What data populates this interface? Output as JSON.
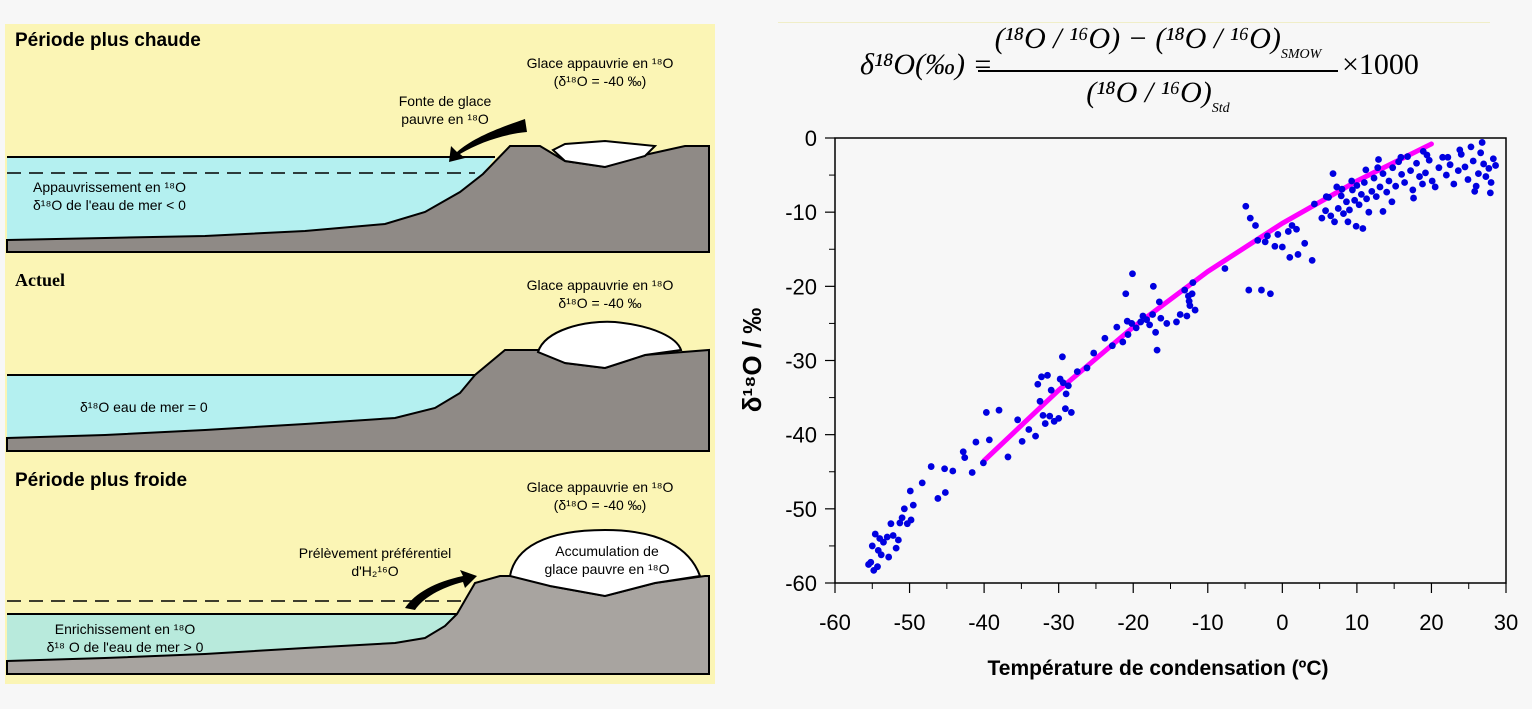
{
  "left_diagram": {
    "panels": [
      {
        "title": "Période plus chaude",
        "ice_label_line1": "Glace appauvrie en ¹⁸O",
        "ice_label_line2": "(δ¹⁸O = -40 ‰)",
        "arrow_label_line1": "Fonte de glace",
        "arrow_label_line2": "pauvre en ¹⁸O",
        "sea_label_line1": "Appauvrissement en ¹⁸O",
        "sea_label_line2": "δ¹⁸O de l'eau de mer < 0"
      },
      {
        "title": "Actuel",
        "ice_label_line1": "Glace appauvrie en ¹⁸O",
        "ice_label_line2": "δ¹⁸O = -40 ‰",
        "sea_label_line1": "δ¹⁸O eau de mer = 0"
      },
      {
        "title": "Période plus froide",
        "ice_label_line1": "Glace appauvrie en ¹⁸O",
        "ice_label_line2": "(δ¹⁸O = -40 ‰)",
        "arrow_label_line1": "Prélèvement préférentiel",
        "arrow_label_line2": "d'H₂¹⁶O",
        "ice_inner_line1": "Accumulation de",
        "ice_inner_line2": "glace pauvre en ¹⁸O",
        "sea_label_line1": "Enrichissement en ¹⁸O",
        "sea_label_line2": "δ¹⁸ O de l'eau de mer > 0"
      }
    ],
    "colors": {
      "background": "#fbf5b5",
      "sea_warm": "#b4f0f0",
      "sea_now": "#b4f0f0",
      "sea_cold": "#b8eadc",
      "rock": "#8f8a86",
      "rock_cold": "#a8a4a0",
      "ice": "#ffffff"
    }
  },
  "formula": {
    "lhs": "δ¹⁸O(‰) =",
    "numerator": "(¹⁸O / ¹⁶O) − (¹⁸O / ¹⁶O)",
    "numerator_sub": "SMOW",
    "denominator": "(¹⁸O / ¹⁶O)",
    "denominator_sub": "Std",
    "rhs": "×1000"
  },
  "chart_data": {
    "type": "scatter",
    "title": "",
    "xlabel": "Température de condensation (ºC)",
    "ylabel": "δ¹⁸O / ‰",
    "xlim": [
      -60,
      30
    ],
    "ylim": [
      -60,
      0
    ],
    "xticks": [
      -60,
      -50,
      -40,
      -30,
      -20,
      -10,
      0,
      10,
      20,
      30
    ],
    "yticks": [
      0,
      -10,
      -20,
      -30,
      -40,
      -50,
      -60
    ],
    "grid": false,
    "legend": "none",
    "point_color": "#0000e0",
    "fit_color": "#ff00ff",
    "fit_line": {
      "x": [
        -40,
        -30,
        -20,
        -10,
        0,
        10,
        20
      ],
      "y": [
        -43.5,
        -34.0,
        -25.5,
        -18.0,
        -11.5,
        -5.8,
        -0.8
      ]
    },
    "series": [
      {
        "name": "observations",
        "points": [
          [
            -55.2,
            -57.2
          ],
          [
            -55.5,
            -57.5
          ],
          [
            -54.8,
            -58.3
          ],
          [
            -54.3,
            -57.8
          ],
          [
            -55.0,
            -55.0
          ],
          [
            -54.6,
            -53.4
          ],
          [
            -54.2,
            -55.6
          ],
          [
            -53.8,
            -56.2
          ],
          [
            -54.0,
            -54.0
          ],
          [
            -53.5,
            -54.5
          ],
          [
            -53.0,
            -53.8
          ],
          [
            -52.8,
            -56.5
          ],
          [
            -52.5,
            -52.0
          ],
          [
            -52.2,
            -53.6
          ],
          [
            -51.8,
            -55.3
          ],
          [
            -51.5,
            -54.2
          ],
          [
            -51.3,
            -51.9
          ],
          [
            -51.0,
            -51.2
          ],
          [
            -50.7,
            -50.0
          ],
          [
            -50.3,
            -52.0
          ],
          [
            -49.8,
            -51.5
          ],
          [
            -49.5,
            -49.5
          ],
          [
            -49.9,
            -47.6
          ],
          [
            -48.3,
            -46.5
          ],
          [
            -47.1,
            -44.3
          ],
          [
            -46.2,
            -48.6
          ],
          [
            -45.3,
            -44.6
          ],
          [
            -45.2,
            -47.8
          ],
          [
            -44.2,
            -44.9
          ],
          [
            -42.8,
            -42.3
          ],
          [
            -42.6,
            -43.1
          ],
          [
            -41.6,
            -45.1
          ],
          [
            -41.1,
            -41.0
          ],
          [
            -40.1,
            -43.8
          ],
          [
            -39.3,
            -40.7
          ],
          [
            -39.7,
            -37.0
          ],
          [
            -38.0,
            -36.7
          ],
          [
            -36.8,
            -43.0
          ],
          [
            -35.5,
            -38.0
          ],
          [
            -34.9,
            -40.9
          ],
          [
            -34.0,
            -39.3
          ],
          [
            -33.1,
            -40.2
          ],
          [
            -32.1,
            -37.4
          ],
          [
            -31.8,
            -38.5
          ],
          [
            -31.2,
            -37.5
          ],
          [
            -30.6,
            -38.2
          ],
          [
            -30.0,
            -37.8
          ],
          [
            -29.1,
            -36.5
          ],
          [
            -28.3,
            -37.0
          ],
          [
            -32.5,
            -35.5
          ],
          [
            -31.0,
            -34.0
          ],
          [
            -32.3,
            -32.2
          ],
          [
            -31.5,
            -32.0
          ],
          [
            -32.8,
            -33.2
          ],
          [
            -29.8,
            -32.5
          ],
          [
            -29.4,
            -33.0
          ],
          [
            -28.7,
            -33.4
          ],
          [
            -29.0,
            -34.5
          ],
          [
            -29.5,
            -29.5
          ],
          [
            -27.5,
            -31.5
          ],
          [
            -26.2,
            -31.0
          ],
          [
            -25.3,
            -29.0
          ],
          [
            -23.8,
            -27.0
          ],
          [
            -22.8,
            -28.0
          ],
          [
            -22.2,
            -25.5
          ],
          [
            -21.4,
            -27.5
          ],
          [
            -20.7,
            -26.5
          ],
          [
            -20.8,
            -24.7
          ],
          [
            -20.2,
            -25.0
          ],
          [
            -19.6,
            -25.6
          ],
          [
            -19.0,
            -24.8
          ],
          [
            -18.7,
            -24.0
          ],
          [
            -18.2,
            -24.5
          ],
          [
            -17.8,
            -25.2
          ],
          [
            -17.4,
            -23.8
          ],
          [
            -17.0,
            -26.2
          ],
          [
            -16.3,
            -24.3
          ],
          [
            -16.8,
            -28.6
          ],
          [
            -15.5,
            -25.0
          ],
          [
            -14.2,
            -24.8
          ],
          [
            -13.7,
            -23.8
          ],
          [
            -12.8,
            -24.0
          ],
          [
            -12.4,
            -22.6
          ],
          [
            -12.5,
            -22.0
          ],
          [
            -12.6,
            -21.3
          ],
          [
            -12.1,
            -21.0
          ],
          [
            -13.1,
            -20.5
          ],
          [
            -12.0,
            -19.5
          ],
          [
            -11.7,
            -23.2
          ],
          [
            -20.1,
            -18.3
          ],
          [
            -21.0,
            -21.0
          ],
          [
            -17.3,
            -20.0
          ],
          [
            -16.5,
            -22.1
          ],
          [
            -7.7,
            -17.6
          ],
          [
            -4.9,
            -9.2
          ],
          [
            -4.3,
            -10.8
          ],
          [
            -3.6,
            -11.8
          ],
          [
            -3.3,
            -13.8
          ],
          [
            -2.3,
            -14.0
          ],
          [
            -2.0,
            -13.2
          ],
          [
            -1.0,
            -14.6
          ],
          [
            -0.6,
            -13.0
          ],
          [
            0.0,
            -14.7
          ],
          [
            0.8,
            -12.6
          ],
          [
            1.3,
            -11.8
          ],
          [
            1.9,
            -12.3
          ],
          [
            1.0,
            -16.1
          ],
          [
            2.1,
            -15.7
          ],
          [
            4.0,
            -16.5
          ],
          [
            -4.5,
            -20.5
          ],
          [
            -2.8,
            -20.5
          ],
          [
            -1.6,
            -21.0
          ],
          [
            3.0,
            -14.2
          ],
          [
            5.3,
            -10.8
          ],
          [
            5.8,
            -9.8
          ],
          [
            6.2,
            -8.0
          ],
          [
            6.5,
            -10.5
          ],
          [
            7.0,
            -11.3
          ],
          [
            7.5,
            -9.5
          ],
          [
            7.9,
            -7.8
          ],
          [
            8.2,
            -10.2
          ],
          [
            8.6,
            -8.6
          ],
          [
            9.0,
            -9.7
          ],
          [
            9.4,
            -7.0
          ],
          [
            9.7,
            -8.4
          ],
          [
            10.0,
            -6.4
          ],
          [
            10.3,
            -9.0
          ],
          [
            10.6,
            -7.6
          ],
          [
            11.0,
            -6.0
          ],
          [
            11.3,
            -8.2
          ],
          [
            11.6,
            -10.0
          ],
          [
            12.0,
            -7.2
          ],
          [
            12.3,
            -5.4
          ],
          [
            12.6,
            -7.9
          ],
          [
            13.1,
            -6.6
          ],
          [
            13.5,
            -4.8
          ],
          [
            14.0,
            -7.3
          ],
          [
            14.3,
            -5.8
          ],
          [
            14.8,
            -4.0
          ],
          [
            15.2,
            -6.5
          ],
          [
            15.6,
            -3.2
          ],
          [
            16.0,
            -4.9
          ],
          [
            16.4,
            -6.0
          ],
          [
            16.8,
            -2.5
          ],
          [
            17.2,
            -4.4
          ],
          [
            17.5,
            -7.0
          ],
          [
            18.0,
            -3.4
          ],
          [
            18.4,
            -5.2
          ],
          [
            18.8,
            -6.2
          ],
          [
            19.2,
            -4.7
          ],
          [
            19.7,
            -3.0
          ],
          [
            20.1,
            -5.8
          ],
          [
            20.5,
            -6.6
          ],
          [
            21.0,
            -4.0
          ],
          [
            21.5,
            -2.6
          ],
          [
            22.0,
            -5.0
          ],
          [
            22.5,
            -3.6
          ],
          [
            23.0,
            -6.2
          ],
          [
            23.6,
            -4.4
          ],
          [
            24.0,
            -2.2
          ],
          [
            24.5,
            -3.9
          ],
          [
            24.9,
            -5.6
          ],
          [
            25.3,
            -1.2
          ],
          [
            25.6,
            -3.1
          ],
          [
            26.0,
            -6.5
          ],
          [
            26.3,
            -4.8
          ],
          [
            26.6,
            -2.0
          ],
          [
            27.0,
            -3.5
          ],
          [
            27.3,
            -5.2
          ],
          [
            27.7,
            -4.1
          ],
          [
            28.0,
            -6.0
          ],
          [
            28.3,
            -2.8
          ],
          [
            28.6,
            -3.7
          ],
          [
            26.8,
            -0.6
          ],
          [
            23.8,
            -1.6
          ],
          [
            22.2,
            -2.6
          ],
          [
            19.4,
            -2.3
          ],
          [
            15.9,
            -2.6
          ],
          [
            12.8,
            -4.0
          ],
          [
            11.2,
            -4.3
          ],
          [
            9.3,
            -5.8
          ],
          [
            7.3,
            -6.6
          ],
          [
            5.9,
            -7.9
          ],
          [
            4.3,
            -8.9
          ],
          [
            6.8,
            -4.8
          ],
          [
            12.9,
            -2.9
          ],
          [
            8.8,
            -11.3
          ],
          [
            9.9,
            -11.9
          ],
          [
            10.8,
            -12.2
          ],
          [
            13.5,
            -9.9
          ],
          [
            14.7,
            -8.6
          ],
          [
            17.6,
            -8.1
          ],
          [
            8.0,
            -6.9
          ],
          [
            18.9,
            -1.8
          ],
          [
            25.8,
            -7.2
          ],
          [
            27.9,
            -7.4
          ]
        ]
      }
    ]
  }
}
